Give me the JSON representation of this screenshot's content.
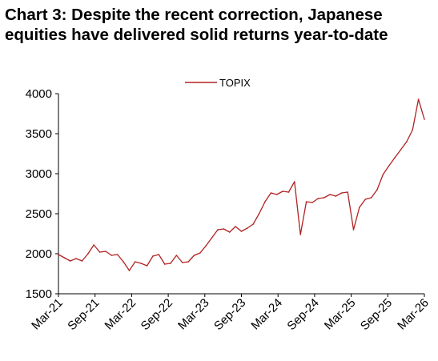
{
  "title_lines": [
    "Chart 3: Despite the recent correction, Japanese",
    "equities have delivered solid returns year-to-date"
  ],
  "chart_data": {
    "type": "line",
    "title": "Chart 3: Despite the recent correction, Japanese equities have delivered solid returns year-to-date",
    "xlabel": "",
    "ylabel": "",
    "ylim": [
      1500,
      4000
    ],
    "y_ticks": [
      1500,
      2000,
      2500,
      3000,
      3500,
      4000
    ],
    "x_ticks": [
      "Mar-21",
      "Sep-21",
      "Mar-22",
      "Sep-22",
      "Mar-23",
      "Sep-23",
      "Mar-24",
      "Sep-24",
      "Mar-25",
      "Sep-25",
      "Mar-26"
    ],
    "legend": {
      "position": "top-center",
      "entries": [
        "TOPIX"
      ]
    },
    "grid": false,
    "series": [
      {
        "name": "TOPIX",
        "color": "#b22222",
        "x": [
          "Mar-21",
          "Apr-21",
          "May-21",
          "Jun-21",
          "Jul-21",
          "Aug-21",
          "Sep-21",
          "Oct-21",
          "Nov-21",
          "Dec-21",
          "Jan-22",
          "Feb-22",
          "Mar-22",
          "Apr-22",
          "May-22",
          "Jun-22",
          "Jul-22",
          "Aug-22",
          "Sep-22",
          "Oct-22",
          "Nov-22",
          "Dec-22",
          "Jan-23",
          "Feb-23",
          "Mar-23",
          "Apr-23",
          "May-23",
          "Jun-23",
          "Jul-23",
          "Aug-23",
          "Sep-23",
          "Oct-23",
          "Nov-23",
          "Dec-23",
          "Jan-24",
          "Feb-24",
          "Mar-24",
          "Apr-24",
          "May-24",
          "Jun-24",
          "Jul-24",
          "early Aug-24",
          "mid Aug-24",
          "Sep-24",
          "Oct-24",
          "Nov-24",
          "Dec-24",
          "Jan-25",
          "Feb-25",
          "Mar-25",
          "early Apr-25",
          "mid Apr-25",
          "May-25",
          "Jun-25",
          "Jul-25",
          "Aug-25",
          "Sep-25",
          "Oct-25",
          "Nov-25",
          "Dec-25",
          "Jan-26",
          "Feb-26",
          "Mar-26"
        ],
        "values": [
          1990,
          1950,
          1910,
          1940,
          1910,
          2000,
          2110,
          2020,
          2030,
          1980,
          1990,
          1900,
          1790,
          1900,
          1880,
          1850,
          1970,
          1990,
          1870,
          1880,
          1980,
          1890,
          1900,
          1980,
          2010,
          2100,
          2200,
          2300,
          2310,
          2270,
          2340,
          2280,
          2320,
          2370,
          2500,
          2650,
          2760,
          2740,
          2780,
          2770,
          2900,
          2240,
          2650,
          2640,
          2690,
          2700,
          2740,
          2720,
          2760,
          2770,
          2300,
          2580,
          2680,
          2700,
          2800,
          2990,
          3100,
          3200,
          3300,
          3400,
          3550,
          3930,
          3680
        ]
      }
    ]
  }
}
